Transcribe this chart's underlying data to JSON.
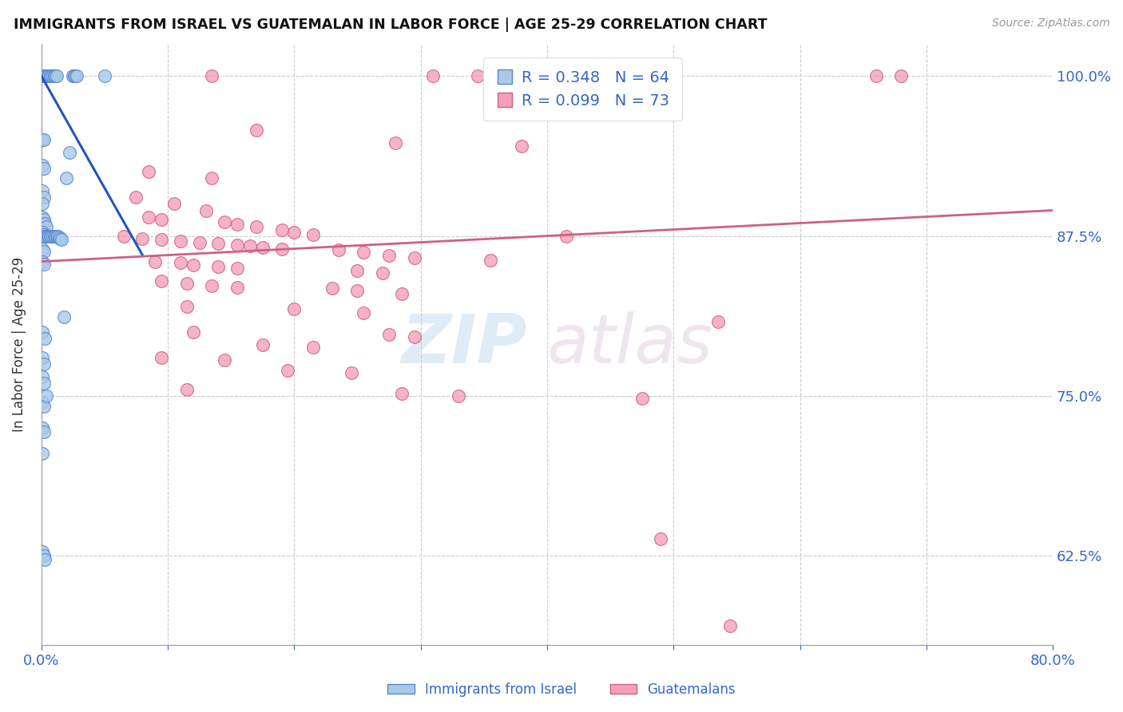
{
  "title": "IMMIGRANTS FROM ISRAEL VS GUATEMALAN IN LABOR FORCE | AGE 25-29 CORRELATION CHART",
  "source": "Source: ZipAtlas.com",
  "ylabel": "In Labor Force | Age 25-29",
  "ytick_labels": [
    "62.5%",
    "75.0%",
    "87.5%",
    "100.0%"
  ],
  "ytick_values": [
    0.625,
    0.75,
    0.875,
    1.0
  ],
  "israel_color": "#aac8e8",
  "israel_edge": "#5588cc",
  "guatemala_color": "#f4a0b8",
  "guatemala_edge": "#d06080",
  "israel_line_color": "#2255bb",
  "guatemala_line_color": "#d06080",
  "watermark_zip": "ZIP",
  "watermark_atlas": "atlas",
  "israel_scatter": [
    [
      0.001,
      1.0
    ],
    [
      0.002,
      1.0
    ],
    [
      0.003,
      1.0
    ],
    [
      0.004,
      1.0
    ],
    [
      0.005,
      1.0
    ],
    [
      0.006,
      1.0
    ],
    [
      0.007,
      1.0
    ],
    [
      0.008,
      1.0
    ],
    [
      0.009,
      1.0
    ],
    [
      0.01,
      1.0
    ],
    [
      0.011,
      1.0
    ],
    [
      0.012,
      1.0
    ],
    [
      0.025,
      1.0
    ],
    [
      0.026,
      1.0
    ],
    [
      0.027,
      1.0
    ],
    [
      0.028,
      1.0
    ],
    [
      0.05,
      1.0
    ],
    [
      0.001,
      0.95
    ],
    [
      0.002,
      0.95
    ],
    [
      0.001,
      0.93
    ],
    [
      0.002,
      0.928
    ],
    [
      0.022,
      0.94
    ],
    [
      0.02,
      0.92
    ],
    [
      0.001,
      0.91
    ],
    [
      0.002,
      0.905
    ],
    [
      0.001,
      0.9
    ],
    [
      0.001,
      0.89
    ],
    [
      0.002,
      0.888
    ],
    [
      0.003,
      0.885
    ],
    [
      0.004,
      0.882
    ],
    [
      0.001,
      0.878
    ],
    [
      0.002,
      0.876
    ],
    [
      0.003,
      0.875
    ],
    [
      0.004,
      0.875
    ],
    [
      0.005,
      0.875
    ],
    [
      0.006,
      0.875
    ],
    [
      0.007,
      0.875
    ],
    [
      0.008,
      0.875
    ],
    [
      0.009,
      0.875
    ],
    [
      0.01,
      0.875
    ],
    [
      0.011,
      0.875
    ],
    [
      0.012,
      0.875
    ],
    [
      0.013,
      0.875
    ],
    [
      0.014,
      0.874
    ],
    [
      0.015,
      0.873
    ],
    [
      0.016,
      0.872
    ],
    [
      0.001,
      0.865
    ],
    [
      0.002,
      0.863
    ],
    [
      0.001,
      0.855
    ],
    [
      0.002,
      0.853
    ],
    [
      0.018,
      0.812
    ],
    [
      0.001,
      0.8
    ],
    [
      0.003,
      0.795
    ],
    [
      0.001,
      0.78
    ],
    [
      0.002,
      0.775
    ],
    [
      0.001,
      0.765
    ],
    [
      0.002,
      0.76
    ],
    [
      0.001,
      0.745
    ],
    [
      0.002,
      0.742
    ],
    [
      0.001,
      0.725
    ],
    [
      0.002,
      0.722
    ],
    [
      0.001,
      0.705
    ],
    [
      0.004,
      0.75
    ],
    [
      0.001,
      0.628
    ],
    [
      0.002,
      0.625
    ],
    [
      0.003,
      0.622
    ]
  ],
  "guatemala_scatter": [
    [
      0.135,
      1.0
    ],
    [
      0.31,
      1.0
    ],
    [
      0.345,
      1.0
    ],
    [
      0.66,
      1.0
    ],
    [
      0.68,
      1.0
    ],
    [
      0.17,
      0.958
    ],
    [
      0.28,
      0.948
    ],
    [
      0.38,
      0.945
    ],
    [
      0.085,
      0.925
    ],
    [
      0.135,
      0.92
    ],
    [
      0.075,
      0.905
    ],
    [
      0.105,
      0.9
    ],
    [
      0.13,
      0.895
    ],
    [
      0.085,
      0.89
    ],
    [
      0.095,
      0.888
    ],
    [
      0.145,
      0.886
    ],
    [
      0.155,
      0.884
    ],
    [
      0.17,
      0.882
    ],
    [
      0.19,
      0.88
    ],
    [
      0.2,
      0.878
    ],
    [
      0.215,
      0.876
    ],
    [
      0.065,
      0.875
    ],
    [
      0.08,
      0.873
    ],
    [
      0.095,
      0.872
    ],
    [
      0.11,
      0.871
    ],
    [
      0.125,
      0.87
    ],
    [
      0.14,
      0.869
    ],
    [
      0.155,
      0.868
    ],
    [
      0.165,
      0.867
    ],
    [
      0.175,
      0.866
    ],
    [
      0.19,
      0.865
    ],
    [
      0.235,
      0.864
    ],
    [
      0.255,
      0.862
    ],
    [
      0.275,
      0.86
    ],
    [
      0.295,
      0.858
    ],
    [
      0.355,
      0.856
    ],
    [
      0.415,
      0.875
    ],
    [
      0.09,
      0.855
    ],
    [
      0.11,
      0.854
    ],
    [
      0.12,
      0.852
    ],
    [
      0.14,
      0.851
    ],
    [
      0.155,
      0.85
    ],
    [
      0.25,
      0.848
    ],
    [
      0.27,
      0.846
    ],
    [
      0.095,
      0.84
    ],
    [
      0.115,
      0.838
    ],
    [
      0.135,
      0.836
    ],
    [
      0.155,
      0.835
    ],
    [
      0.23,
      0.834
    ],
    [
      0.25,
      0.832
    ],
    [
      0.285,
      0.83
    ],
    [
      0.115,
      0.82
    ],
    [
      0.2,
      0.818
    ],
    [
      0.255,
      0.815
    ],
    [
      0.12,
      0.8
    ],
    [
      0.275,
      0.798
    ],
    [
      0.295,
      0.796
    ],
    [
      0.175,
      0.79
    ],
    [
      0.215,
      0.788
    ],
    [
      0.095,
      0.78
    ],
    [
      0.145,
      0.778
    ],
    [
      0.195,
      0.77
    ],
    [
      0.245,
      0.768
    ],
    [
      0.115,
      0.755
    ],
    [
      0.285,
      0.752
    ],
    [
      0.33,
      0.75
    ],
    [
      0.475,
      0.748
    ],
    [
      0.535,
      0.808
    ],
    [
      0.49,
      0.638
    ],
    [
      0.545,
      0.57
    ]
  ],
  "israel_trend": [
    0.0,
    1.0,
    0.08,
    0.86
  ],
  "guatemala_trend": [
    0.0,
    0.855,
    0.8,
    0.895
  ],
  "xlim": [
    0.0,
    0.8
  ],
  "ylim": [
    0.555,
    1.025
  ],
  "background_color": "#ffffff",
  "grid_color": "#cccccc",
  "title_color": "#111111",
  "tick_color": "#3366cc"
}
